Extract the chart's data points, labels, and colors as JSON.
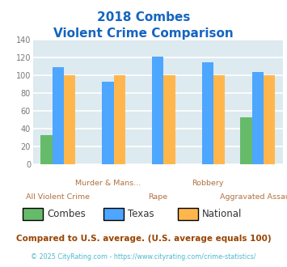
{
  "title_line1": "2018 Combes",
  "title_line2": "Violent Crime Comparison",
  "categories": [
    "All Violent Crime",
    "Murder & Mans...",
    "Rape",
    "Robbery",
    "Aggravated Assault"
  ],
  "xlabels_row1": [
    "",
    "Murder & Mans...",
    "",
    "Robbery",
    ""
  ],
  "xlabels_row2": [
    "All Violent Crime",
    "",
    "Rape",
    "",
    "Aggravated Assault"
  ],
  "series": {
    "Combes": [
      33,
      0,
      0,
      0,
      53
    ],
    "Texas": [
      109,
      93,
      121,
      115,
      104
    ],
    "National": [
      100,
      100,
      100,
      100,
      100
    ]
  },
  "colors": {
    "Combes": "#66bb6a",
    "Texas": "#4da6ff",
    "National": "#ffb74d"
  },
  "ylim": [
    0,
    140
  ],
  "yticks": [
    0,
    20,
    40,
    60,
    80,
    100,
    120,
    140
  ],
  "background_color": "#ddeaf0",
  "grid_color": "#ffffff",
  "title_color": "#1565c0",
  "xlabel_color": "#b07040",
  "footnote1": "Compared to U.S. average. (U.S. average equals 100)",
  "footnote2": "© 2025 CityRating.com - https://www.cityrating.com/crime-statistics/",
  "footnote1_color": "#994400",
  "footnote2_color": "#4db8cc"
}
